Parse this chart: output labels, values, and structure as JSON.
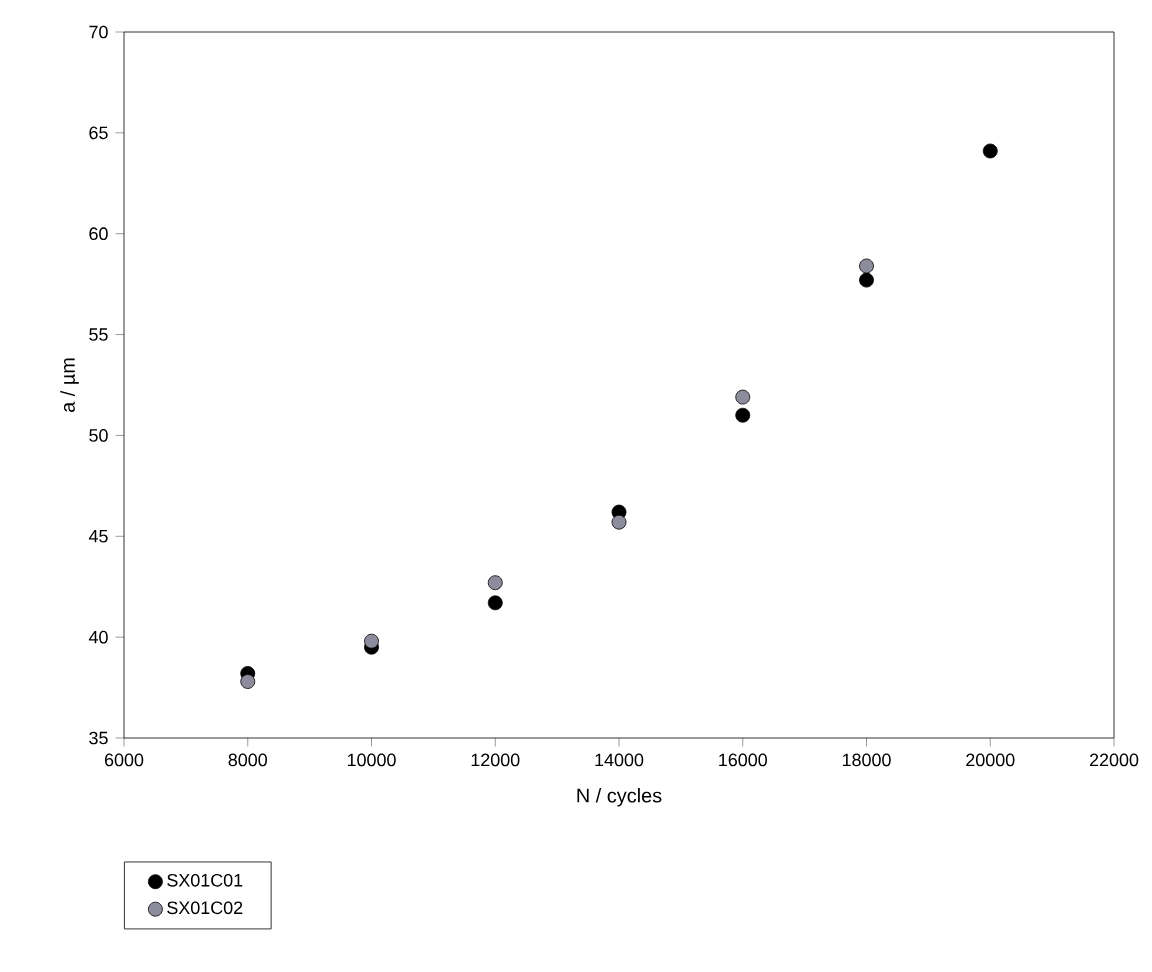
{
  "chart_data": {
    "type": "scatter",
    "xlabel": "N / cycles",
    "ylabel": "a / µm",
    "xlim": [
      6000,
      22000
    ],
    "xticks": [
      6000,
      8000,
      10000,
      12000,
      14000,
      16000,
      18000,
      20000,
      22000
    ],
    "ylim": [
      35,
      70
    ],
    "yticks": [
      35,
      40,
      45,
      50,
      55,
      60,
      65,
      70
    ],
    "x": [
      8000,
      10000,
      12000,
      14000,
      16000,
      18000,
      20000
    ],
    "series": [
      {
        "name": "SX01C01",
        "color": "#000000",
        "values": [
          38.2,
          39.5,
          41.7,
          46.2,
          51.0,
          57.7,
          64.1
        ]
      },
      {
        "name": "SX01C02",
        "color": "#8c8c9c",
        "values": [
          37.8,
          39.8,
          42.7,
          45.7,
          51.9,
          58.4,
          null
        ]
      }
    ],
    "marker": "circle",
    "grid": false,
    "legend": "bottom left"
  }
}
